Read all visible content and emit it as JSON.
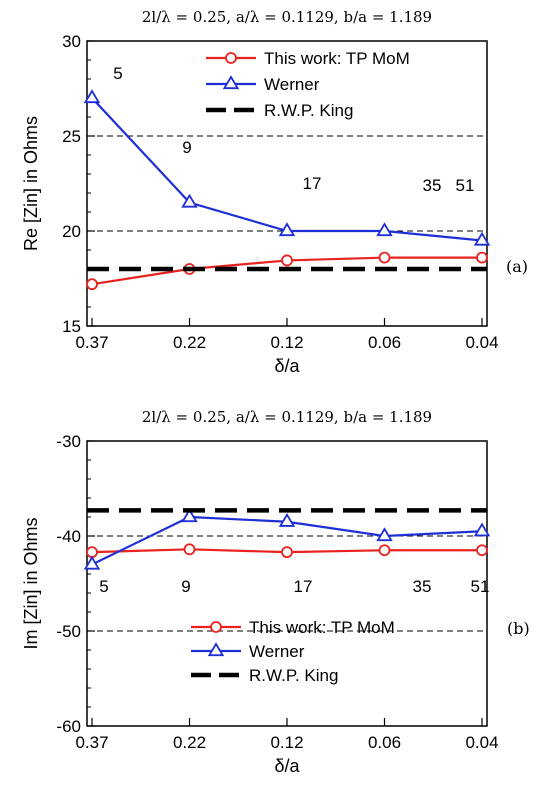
{
  "colors": {
    "tp_mom": "#e8231f",
    "werner": "#1f2fd6",
    "king": "#000000"
  },
  "chart_data": [
    {
      "type": "line",
      "panel_label": "(a)",
      "title": "2l/λ = 0.25, a/λ = 0.1129, b/a = 1.189",
      "xlabel": "δ/a",
      "ylabel": "Re [Zin] in Ohms",
      "categories": [
        "0.37",
        "0.22",
        "0.12",
        "0.06",
        "0.04"
      ],
      "ylim": [
        15,
        30
      ],
      "yticks": [
        15,
        20,
        25,
        30
      ],
      "grid_y": [
        20,
        25
      ],
      "legend_position": "top-right",
      "series": [
        {
          "name": "This work: TP MoM",
          "color_key": "tp_mom",
          "marker": "circle",
          "dash": "solid",
          "values": [
            17.2,
            18.0,
            18.45,
            18.6,
            18.6
          ]
        },
        {
          "name": "Werner",
          "color_key": "werner",
          "marker": "triangle",
          "dash": "solid",
          "values": [
            27.0,
            21.5,
            20.0,
            20.0,
            19.5
          ]
        },
        {
          "name": "R.W.P. King",
          "color_key": "king",
          "marker": "none",
          "dash": "dashed",
          "values": [
            18.0,
            18.0,
            18.0,
            18.0,
            18.0
          ]
        }
      ],
      "annotations": [
        "5",
        "9",
        "17",
        "35",
        "51"
      ]
    },
    {
      "type": "line",
      "panel_label": "(b)",
      "title": "2l/λ = 0.25, a/λ = 0.1129, b/a = 1.189",
      "xlabel": "δ/a",
      "ylabel": "Im [Zin] in Ohms",
      "categories": [
        "0.37",
        "0.22",
        "0.12",
        "0.06",
        "0.04"
      ],
      "ylim": [
        -60,
        -30
      ],
      "yticks": [
        -60,
        -50,
        -40,
        -30
      ],
      "grid_y": [
        -40,
        -50
      ],
      "legend_position": "bottom-right",
      "series": [
        {
          "name": "This work: TP MoM",
          "color_key": "tp_mom",
          "marker": "circle",
          "dash": "solid",
          "values": [
            -41.7,
            -41.4,
            -41.7,
            -41.5,
            -41.5
          ]
        },
        {
          "name": "Werner",
          "color_key": "werner",
          "marker": "triangle",
          "dash": "solid",
          "values": [
            -43.0,
            -38.0,
            -38.5,
            -40.0,
            -39.5
          ]
        },
        {
          "name": "R.W.P. King",
          "color_key": "king",
          "marker": "none",
          "dash": "dashed",
          "values": [
            -37.3,
            -37.3,
            -37.3,
            -37.3,
            -37.3
          ]
        }
      ],
      "annotations": [
        "5",
        "9",
        "17",
        "35",
        "51"
      ]
    }
  ]
}
